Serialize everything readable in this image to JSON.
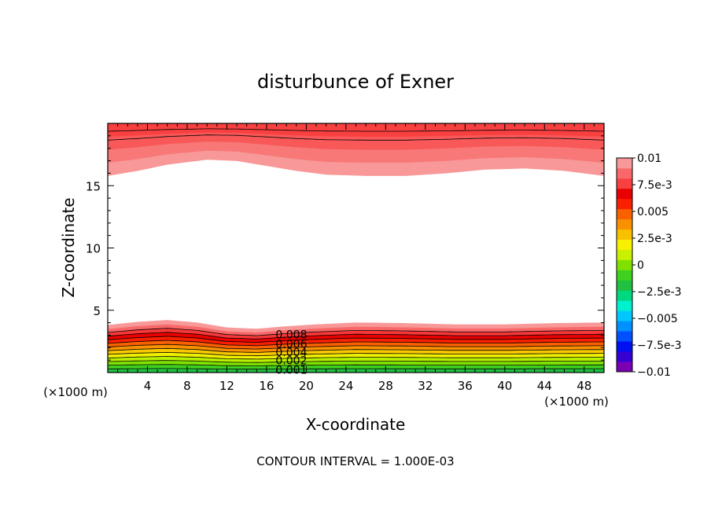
{
  "chart_data": {
    "type": "contour",
    "title": "disturbunce of Exner",
    "xlabel": "X-coordinate",
    "ylabel": "Z-coordinate",
    "x_unit_left": "(×1000 m)",
    "x_unit_right": "(×1000 m)",
    "xlim": [
      0,
      50
    ],
    "ylim": [
      0,
      20
    ],
    "x_ticks": [
      4,
      8,
      12,
      16,
      20,
      24,
      28,
      32,
      36,
      40,
      44,
      48
    ],
    "x_tick_labels": [
      "4",
      "8",
      "12",
      "16",
      "20",
      "24",
      "28",
      "32",
      "36",
      "40",
      "44",
      "48"
    ],
    "y_ticks": [
      5,
      10,
      15
    ],
    "y_tick_labels": [
      "5",
      "10",
      "15"
    ],
    "footer": "CONTOUR INTERVAL = 1.000E-03",
    "contour_interval": 0.001,
    "contour_labels": [
      "0.008",
      "0.006",
      "0.004",
      "0.002",
      "0.001"
    ],
    "colorbar": {
      "range": [
        -0.01,
        0.01
      ],
      "tick_labels": [
        "0.01",
        "7.5e-3",
        "0.005",
        "2.5e-3",
        "0",
        "−2.5e-3",
        "−0.005",
        "−7.5e-3",
        "−0.01"
      ],
      "colors_bottom_to_top": [
        "#7b00b4",
        "#3600d2",
        "#0010f0",
        "#0050ff",
        "#0090ff",
        "#00c8ff",
        "#00f0d0",
        "#00d880",
        "#20c040",
        "#40d020",
        "#80e000",
        "#c8f000",
        "#f8f000",
        "#f8c000",
        "#f89000",
        "#f86000",
        "#f82000",
        "#e80000",
        "#f84040",
        "#f86868",
        "#f89898"
      ]
    },
    "lower_band": {
      "top_profile_km": [
        [
          0,
          3.8
        ],
        [
          3,
          4.05
        ],
        [
          6,
          4.2
        ],
        [
          9,
          4.0
        ],
        [
          12,
          3.6
        ],
        [
          15,
          3.5
        ],
        [
          18,
          3.7
        ],
        [
          21,
          3.85
        ],
        [
          25,
          4.0
        ],
        [
          30,
          3.95
        ],
        [
          35,
          3.85
        ],
        [
          40,
          3.85
        ],
        [
          45,
          3.95
        ],
        [
          50,
          4.0
        ]
      ]
    },
    "upper_band": {
      "bottom_profile_km": [
        [
          0,
          15.8
        ],
        [
          3,
          16.2
        ],
        [
          6,
          16.7
        ],
        [
          10,
          17.1
        ],
        [
          13,
          17.0
        ],
        [
          16,
          16.6
        ],
        [
          19,
          16.2
        ],
        [
          22,
          15.9
        ],
        [
          26,
          15.8
        ],
        [
          30,
          15.8
        ],
        [
          34,
          16.0
        ],
        [
          38,
          16.3
        ],
        [
          42,
          16.4
        ],
        [
          46,
          16.2
        ],
        [
          50,
          15.8
        ]
      ]
    }
  }
}
